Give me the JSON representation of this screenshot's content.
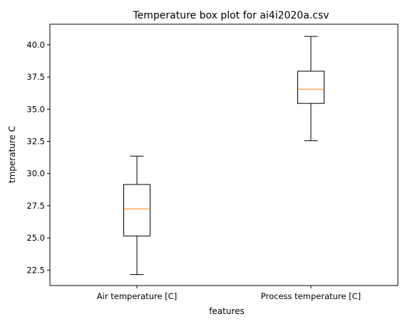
{
  "chart_data": {
    "type": "box",
    "title": "Temperature box plot for ai4i2020a.csv",
    "xlabel": "features",
    "ylabel": "tmperature C",
    "ylim": [
      21.3,
      41.6
    ],
    "yticks": [
      "22.5",
      "25.0",
      "27.5",
      "30.0",
      "32.5",
      "35.0",
      "37.5",
      "40.0"
    ],
    "ytick_values": [
      22.5,
      25.0,
      27.5,
      30.0,
      32.5,
      35.0,
      37.5,
      40.0
    ],
    "grid": false,
    "boxes": [
      {
        "label": "Air temperature [C]",
        "whisker_low": 22.15,
        "q1": 25.15,
        "median": 27.25,
        "q3": 29.15,
        "whisker_high": 31.35
      },
      {
        "label": "Process temperature [C]",
        "whisker_low": 32.55,
        "q1": 35.45,
        "median": 36.55,
        "q3": 37.95,
        "whisker_high": 40.65
      }
    ],
    "box_color": "#000000",
    "median_color": "#ff7f0e"
  }
}
